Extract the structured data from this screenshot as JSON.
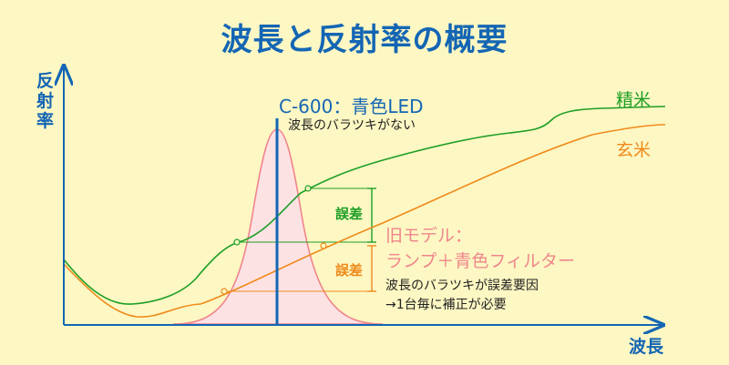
{
  "title": "波長と反射率の概要",
  "axes": {
    "y_label": "反射率",
    "x_label": "波長"
  },
  "curves": {
    "polished_rice": {
      "label": "精米",
      "color": "#1d9f25"
    },
    "brown_rice": {
      "label": "玄米",
      "color": "#ef8a1b"
    }
  },
  "c600": {
    "label": "C-600：青色LED",
    "note": "波長のバラツキがない",
    "color": "#1466b4"
  },
  "error_labels": {
    "upper": "誤差",
    "lower": "誤差"
  },
  "old_model": {
    "line1": "旧モデル：",
    "line2": "ランプ＋青色フィルター",
    "color": "#f0858c"
  },
  "notes": {
    "line1": "波長のバラツキが誤差要因",
    "line2": "→1台毎に補正が必要"
  }
}
